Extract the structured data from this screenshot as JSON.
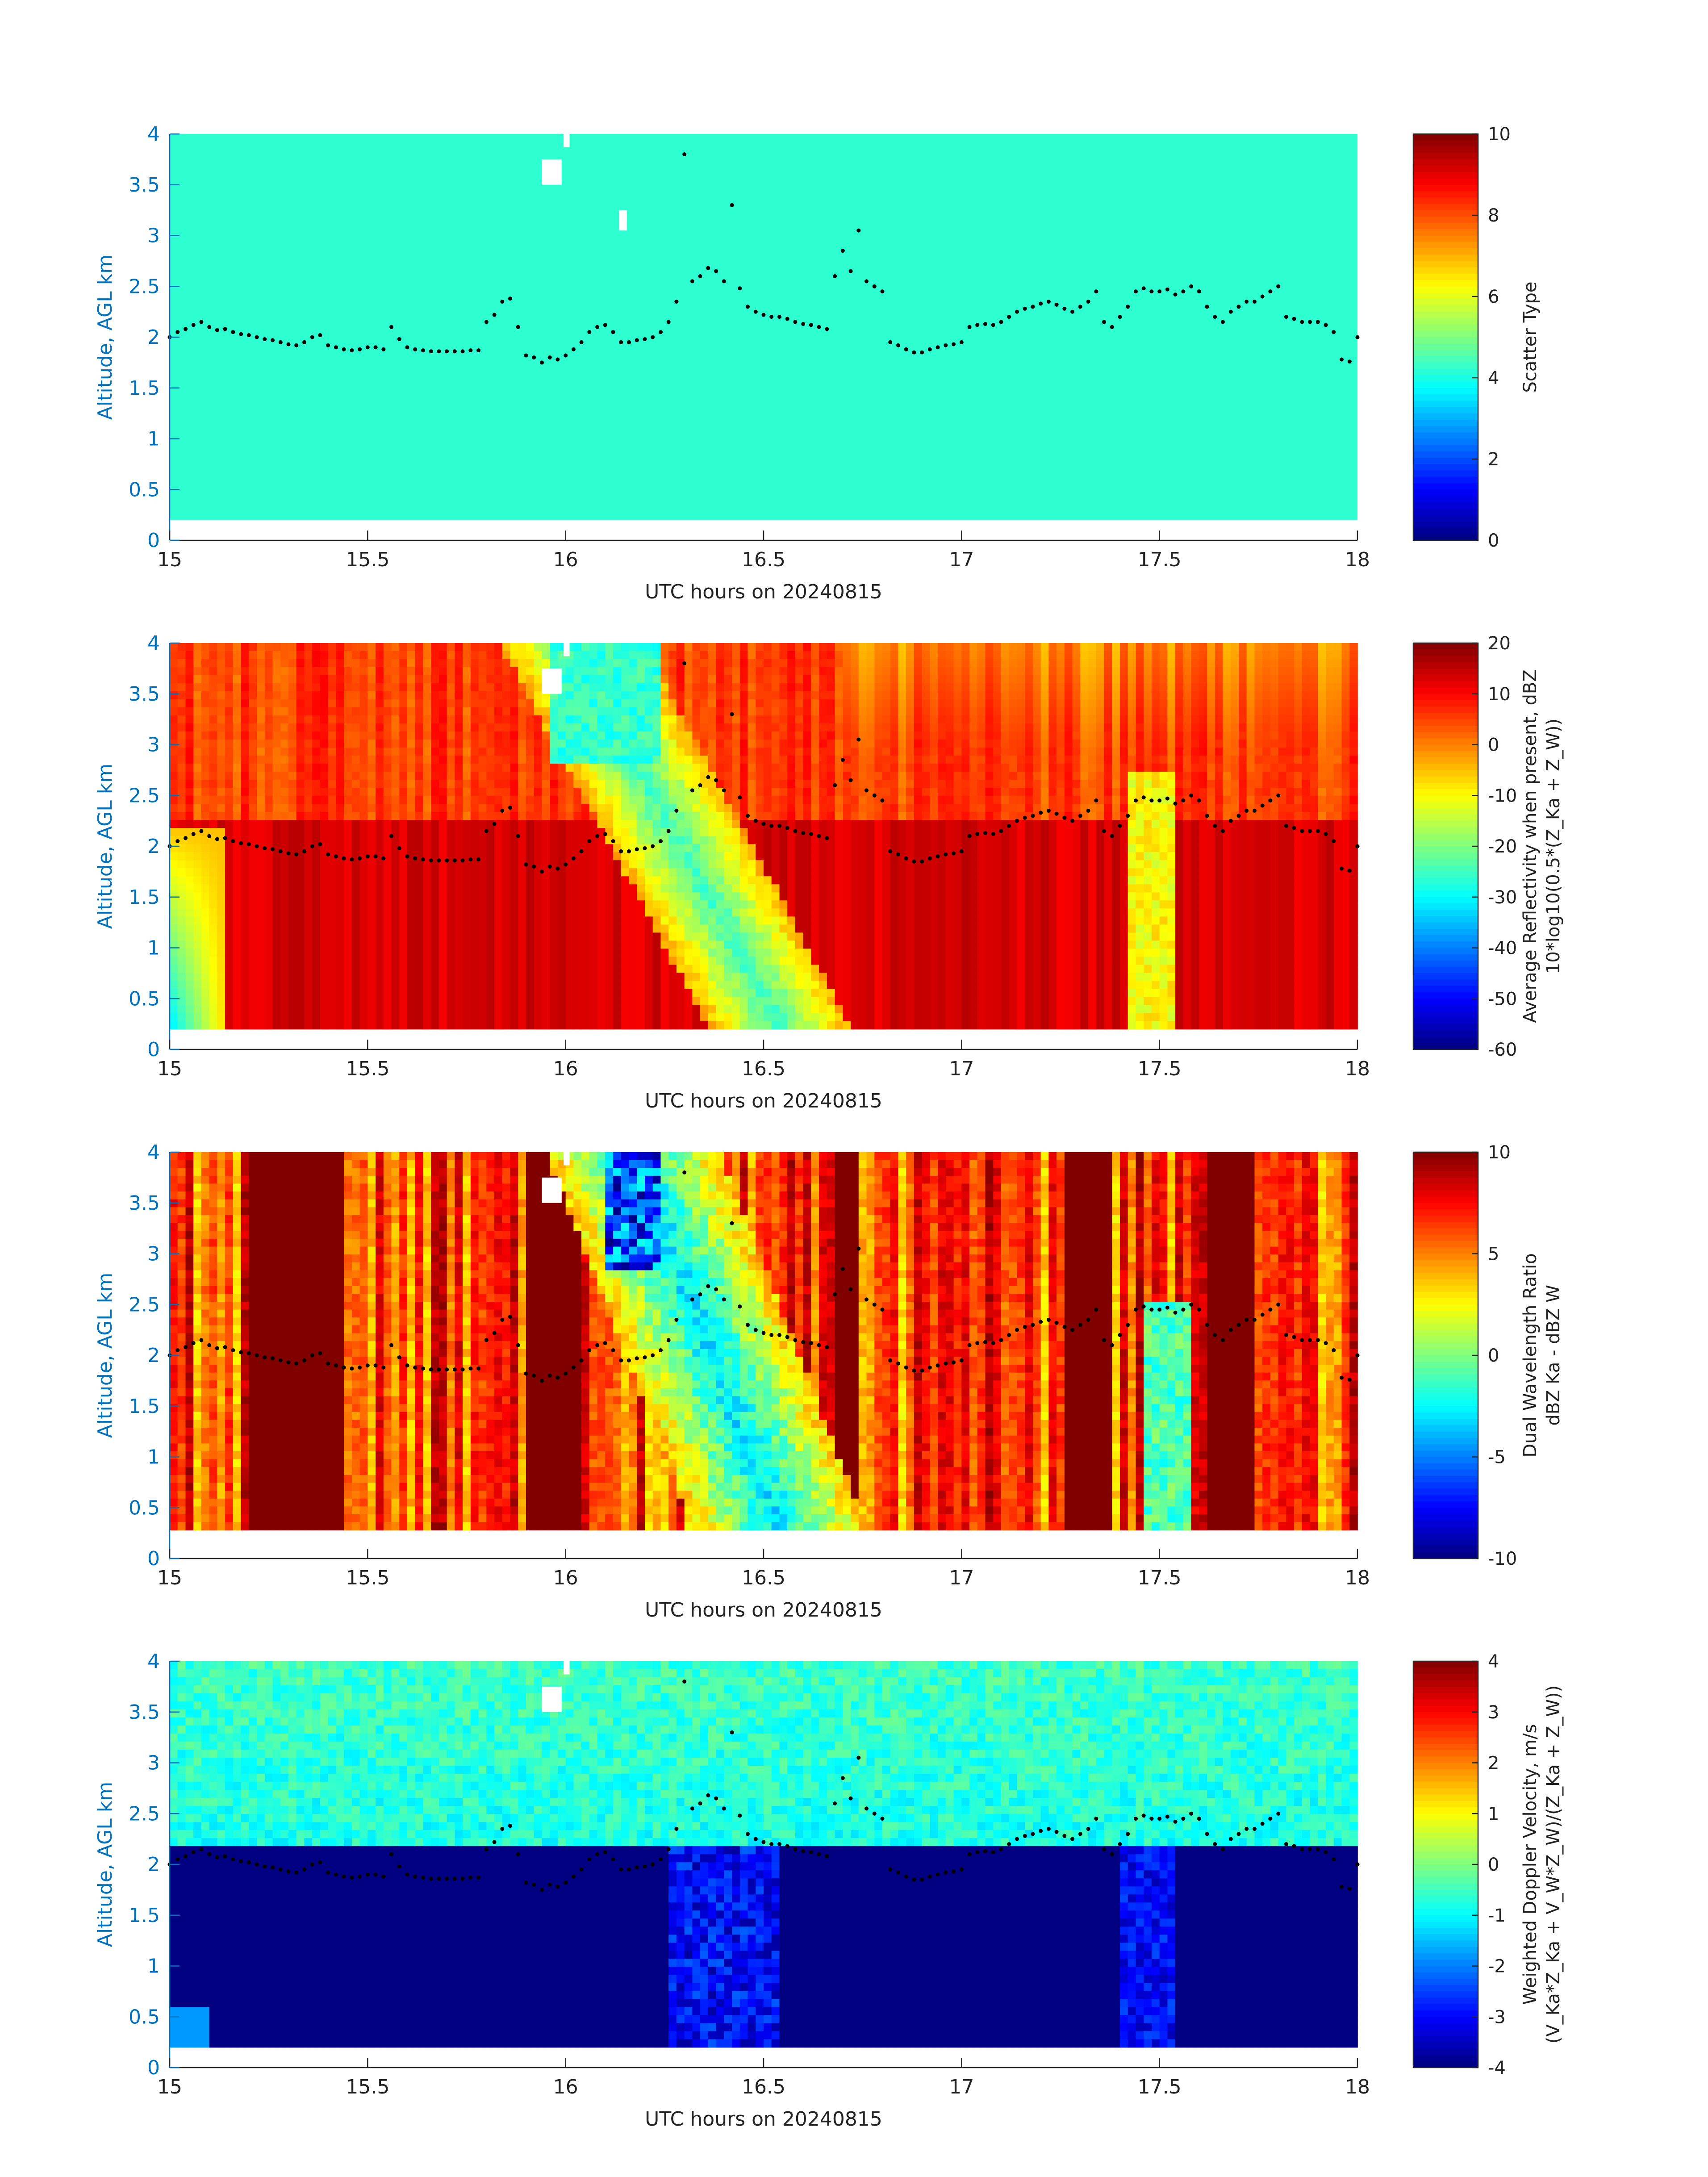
{
  "chart_data": [
    {
      "type": "heatmap",
      "panel": 1,
      "xlabel": "UTC hours on 20240815",
      "ylabel": "Altitude, AGL km",
      "xlim": [
        15,
        18
      ],
      "ylim": [
        0,
        4
      ],
      "xticks": [
        "15",
        "15.5",
        "16",
        "16.5",
        "17",
        "17.5",
        "18"
      ],
      "yticks": [
        "0",
        "0.5",
        "1",
        "1.5",
        "2",
        "2.5",
        "3",
        "3.5",
        "4"
      ],
      "colorbar": {
        "label_lines": [
          "Scatter Type"
        ],
        "ticks": [
          "0",
          "2",
          "4",
          "6",
          "8",
          "10"
        ],
        "range": [
          0,
          10
        ],
        "colormap": "jet"
      },
      "field": "uniform",
      "uniform_value": 4.2,
      "data_bottom_km": 0.2
    },
    {
      "type": "heatmap",
      "panel": 2,
      "xlabel": "UTC hours on 20240815",
      "ylabel": "Altitude, AGL km",
      "xlim": [
        15,
        18
      ],
      "ylim": [
        0,
        4
      ],
      "xticks": [
        "15",
        "15.5",
        "16",
        "16.5",
        "17",
        "17.5",
        "18"
      ],
      "yticks": [
        "0",
        "0.5",
        "1",
        "1.5",
        "2",
        "2.5",
        "3",
        "3.5",
        "4"
      ],
      "colorbar": {
        "label_lines": [
          "Average Reflectivity when present, dBZ",
          "10*log10(0.5*(Z_Ka + Z_W))"
        ],
        "ticks": [
          "-60",
          "-50",
          "-40",
          "-30",
          "-20",
          "-10",
          "0",
          "10",
          "20"
        ],
        "range": [
          -60,
          20
        ],
        "colormap": "jet"
      },
      "field": "reflectivity",
      "data_bottom_km": 0.2
    },
    {
      "type": "heatmap",
      "panel": 3,
      "xlabel": "UTC hours on 20240815",
      "ylabel": "Altitude, AGL km",
      "xlim": [
        15,
        18
      ],
      "ylim": [
        0,
        4
      ],
      "xticks": [
        "15",
        "15.5",
        "16",
        "16.5",
        "17",
        "17.5",
        "18"
      ],
      "yticks": [
        "0",
        "0.5",
        "1",
        "1.5",
        "2",
        "2.5",
        "3",
        "3.5",
        "4"
      ],
      "colorbar": {
        "label_lines": [
          "Dual Wavelength Ratio",
          "dBZ Ka - dBZ W"
        ],
        "ticks": [
          "-10",
          "-5",
          "0",
          "5",
          "10"
        ],
        "range": [
          -10,
          10
        ],
        "colormap": "jet"
      },
      "field": "dwr",
      "data_bottom_km": 0.28
    },
    {
      "type": "heatmap",
      "panel": 4,
      "xlabel": "UTC hours on 20240815",
      "ylabel": "Altitude, AGL km",
      "xlim": [
        15,
        18
      ],
      "ylim": [
        0,
        4
      ],
      "xticks": [
        "15",
        "15.5",
        "16",
        "16.5",
        "17",
        "17.5",
        "18"
      ],
      "yticks": [
        "0",
        "0.5",
        "1",
        "1.5",
        "2",
        "2.5",
        "3",
        "3.5",
        "4"
      ],
      "colorbar": {
        "label_lines": [
          "Weighted Doppler Velocity, m/s",
          "(V_Ka*Z_Ka + V_W*Z_W)/(Z_Ka + Z_W))"
        ],
        "ticks": [
          "-4",
          "-3",
          "-2",
          "-1",
          "0",
          "1",
          "2",
          "3",
          "4"
        ],
        "range": [
          -4,
          4
        ],
        "colormap": "jet"
      },
      "field": "doppler",
      "data_bottom_km": 0.2
    }
  ],
  "overlay_points": {
    "description_color": "#000000",
    "x": [
      15.0,
      15.02,
      15.04,
      15.06,
      15.08,
      15.1,
      15.12,
      15.14,
      15.16,
      15.18,
      15.2,
      15.22,
      15.24,
      15.26,
      15.28,
      15.3,
      15.32,
      15.34,
      15.36,
      15.38,
      15.4,
      15.42,
      15.44,
      15.46,
      15.48,
      15.5,
      15.52,
      15.54,
      15.56,
      15.58,
      15.6,
      15.62,
      15.64,
      15.66,
      15.68,
      15.7,
      15.72,
      15.74,
      15.76,
      15.78,
      15.8,
      15.82,
      15.84,
      15.86,
      15.88,
      15.9,
      15.92,
      15.94,
      15.96,
      15.98,
      16.0,
      16.02,
      16.04,
      16.06,
      16.08,
      16.1,
      16.12,
      16.14,
      16.16,
      16.18,
      16.2,
      16.22,
      16.24,
      16.26,
      16.28,
      16.3,
      16.32,
      16.34,
      16.36,
      16.38,
      16.4,
      16.42,
      16.44,
      16.46,
      16.48,
      16.5,
      16.52,
      16.54,
      16.56,
      16.58,
      16.6,
      16.62,
      16.64,
      16.66,
      16.68,
      16.7,
      16.72,
      16.74,
      16.76,
      16.78,
      16.8,
      16.82,
      16.84,
      16.86,
      16.88,
      16.9,
      16.92,
      16.94,
      16.96,
      16.98,
      17.0,
      17.02,
      17.04,
      17.06,
      17.08,
      17.1,
      17.12,
      17.14,
      17.16,
      17.18,
      17.2,
      17.22,
      17.24,
      17.26,
      17.28,
      17.3,
      17.32,
      17.34,
      17.36,
      17.38,
      17.4,
      17.42,
      17.44,
      17.46,
      17.48,
      17.5,
      17.52,
      17.54,
      17.56,
      17.58,
      17.6,
      17.62,
      17.64,
      17.66,
      17.68,
      17.7,
      17.72,
      17.74,
      17.76,
      17.78,
      17.8,
      17.82,
      17.84,
      17.86,
      17.88,
      17.9,
      17.92,
      17.94,
      17.96,
      17.98,
      18.0
    ],
    "y": [
      2.0,
      2.05,
      2.08,
      2.12,
      2.15,
      2.1,
      2.07,
      2.08,
      2.05,
      2.03,
      2.02,
      2.0,
      1.98,
      1.97,
      1.95,
      1.93,
      1.92,
      1.95,
      2.0,
      2.02,
      1.92,
      1.9,
      1.88,
      1.87,
      1.88,
      1.9,
      1.9,
      1.88,
      2.1,
      1.98,
      1.9,
      1.88,
      1.87,
      1.86,
      1.86,
      1.86,
      1.86,
      1.86,
      1.87,
      1.87,
      2.15,
      2.22,
      2.35,
      2.38,
      2.1,
      1.82,
      1.8,
      1.75,
      1.8,
      1.78,
      1.82,
      1.88,
      1.95,
      2.05,
      2.1,
      2.12,
      2.05,
      1.95,
      1.95,
      1.97,
      1.98,
      2.0,
      2.05,
      2.15,
      2.35,
      3.8,
      2.55,
      2.6,
      2.68,
      2.65,
      2.55,
      3.3,
      2.48,
      2.3,
      2.25,
      2.22,
      2.2,
      2.2,
      2.18,
      2.15,
      2.13,
      2.12,
      2.1,
      2.08,
      2.6,
      2.85,
      2.65,
      3.05,
      2.55,
      2.5,
      2.45,
      1.95,
      1.92,
      1.88,
      1.85,
      1.85,
      1.88,
      1.9,
      1.92,
      1.93,
      1.95,
      2.1,
      2.12,
      2.13,
      2.12,
      2.15,
      2.2,
      2.25,
      2.28,
      2.3,
      2.33,
      2.35,
      2.32,
      2.28,
      2.25,
      2.3,
      2.35,
      2.45,
      2.15,
      2.1,
      2.2,
      2.3,
      2.45,
      2.48,
      2.45,
      2.45,
      2.47,
      2.42,
      2.45,
      2.5,
      2.45,
      2.3,
      2.2,
      2.15,
      2.25,
      2.3,
      2.35,
      2.35,
      2.4,
      2.45,
      2.5,
      2.2,
      2.18,
      2.15,
      2.15,
      2.15,
      2.12,
      2.05,
      1.78,
      1.76,
      2.0
    ]
  },
  "colors": {
    "axis": "#262626",
    "ylabel": "#0072BD",
    "missing": "#ffffff",
    "points": "#000000"
  }
}
